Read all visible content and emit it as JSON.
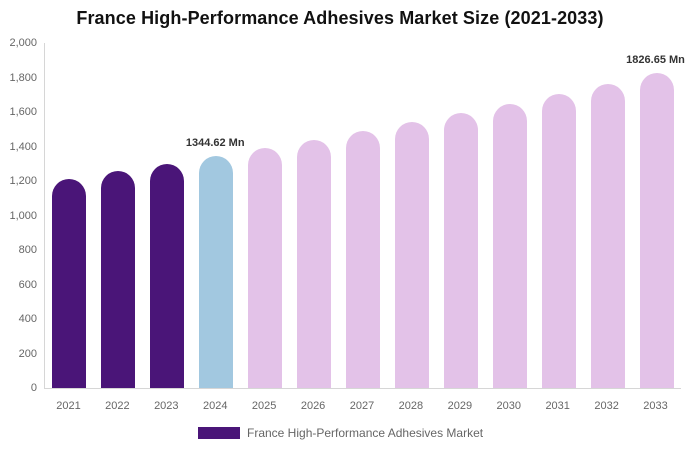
{
  "colors": {
    "past": "#4A1578",
    "current": "#A2C8E0",
    "forecast": "#E3C2E8",
    "axis_line": "#D6D6D6",
    "tick_text": "#666666",
    "value_label_text": "#333333"
  },
  "chart_data": {
    "type": "bar",
    "title": "France High-Performance Adhesives Market Size (2021-2033)",
    "unit": "Mn",
    "categories": [
      "2021",
      "2022",
      "2023",
      "2024",
      "2025",
      "2026",
      "2027",
      "2028",
      "2029",
      "2030",
      "2031",
      "2032",
      "2033"
    ],
    "values": [
      1214,
      1256,
      1300,
      1344.62,
      1391,
      1439,
      1489,
      1541,
      1594,
      1649,
      1706,
      1765,
      1826.65
    ],
    "color_roles": [
      "past",
      "past",
      "past",
      "current",
      "forecast",
      "forecast",
      "forecast",
      "forecast",
      "forecast",
      "forecast",
      "forecast",
      "forecast",
      "forecast"
    ],
    "ylim": [
      0,
      2000
    ],
    "yticks": [
      {
        "value": 2000,
        "label": "2,000"
      },
      {
        "value": 1800,
        "label": "1,800"
      },
      {
        "value": 1600,
        "label": "1,600"
      },
      {
        "value": 1400,
        "label": "1,400"
      },
      {
        "value": 1200,
        "label": "1,200"
      },
      {
        "value": 1000,
        "label": "1,000"
      },
      {
        "value": 800,
        "label": "800"
      },
      {
        "value": 600,
        "label": "600"
      },
      {
        "value": 400,
        "label": "400"
      },
      {
        "value": 200,
        "label": "200"
      },
      {
        "value": 0,
        "label": "0"
      }
    ],
    "data_labels": [
      {
        "category": "2024",
        "text": "1344.62 Mn"
      },
      {
        "category": "2033",
        "text": "1826.65 Mn"
      }
    ],
    "grid": false,
    "legend_position": "bottom",
    "legend": {
      "label": "France High-Performance Adhesives Market"
    }
  }
}
